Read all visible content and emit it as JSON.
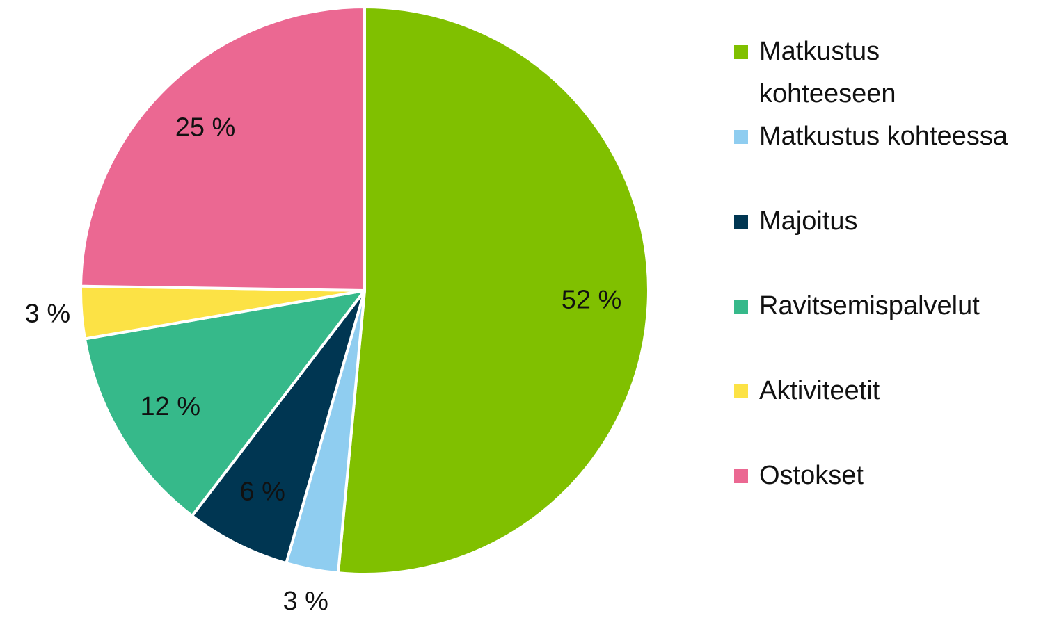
{
  "chart_data": {
    "type": "pie",
    "categories": [
      "Matkustus kohteeseen",
      "Matkustus kohteessa",
      "Majoitus",
      "Ravitsemispalvelut",
      "Aktiviteetit",
      "Ostokset"
    ],
    "values": [
      52,
      3,
      6,
      12,
      3,
      25
    ],
    "value_labels": [
      "52 %",
      "3 %",
      "6 %",
      "12 %",
      "3 %",
      "25 %"
    ],
    "colors": [
      "#80c000",
      "#8fcdf0",
      "#003652",
      "#36b98a",
      "#fce245",
      "#eb6892"
    ],
    "label_colors": [
      "#111111",
      "#111111",
      "#ffffff",
      "#111111",
      "#111111",
      "#111111"
    ]
  }
}
